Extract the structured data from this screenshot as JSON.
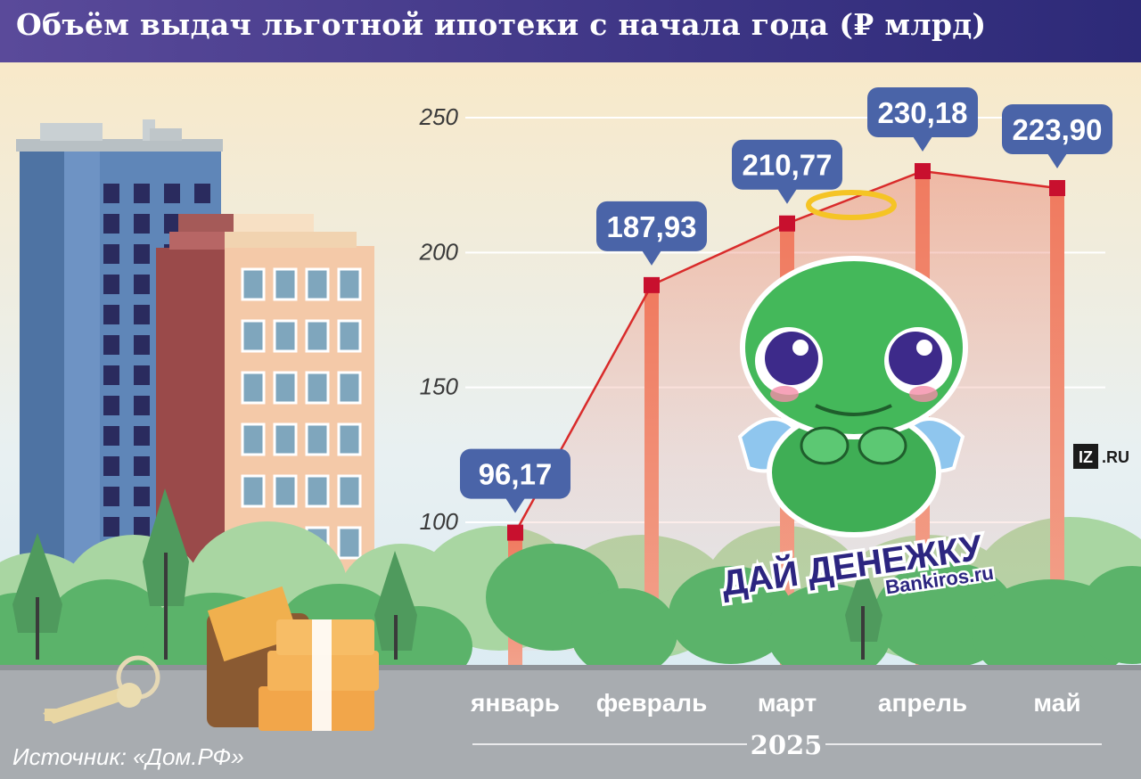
{
  "header": {
    "title": "Объём выдач льготной ипотеки с начала года (₽ млрд)"
  },
  "footer": {
    "source": "Источник: «Дом.РФ»"
  },
  "brand": {
    "iz": "IZ",
    "ru": ".RU"
  },
  "sticker": {
    "line1": "ДАЙ ДЕНЕЖКУ",
    "site": "Bankiros.ru"
  },
  "colors": {
    "header": "#3d3585",
    "line": "#d92b2b",
    "marker": "#c8102e",
    "callout": "#4a64a8",
    "road": "#a8acb0",
    "tree": "#5bb36a"
  },
  "chart_data": {
    "type": "line",
    "title": "Объём выдач льготной ипотеки с начала года (₽ млрд)",
    "categories": [
      "январь",
      "февраль",
      "март",
      "апрель",
      "май"
    ],
    "values": [
      96.17,
      187.93,
      210.77,
      230.18,
      223.9
    ],
    "labels": [
      "96,17",
      "187,93",
      "210,77",
      "230,18",
      "223,90"
    ],
    "ticks": [
      "100",
      "150",
      "200",
      "250"
    ],
    "tick_values": [
      100,
      150,
      200,
      250
    ],
    "xlabel": "2025",
    "ylabel": "",
    "ylim": [
      50,
      250
    ],
    "grid": true
  }
}
